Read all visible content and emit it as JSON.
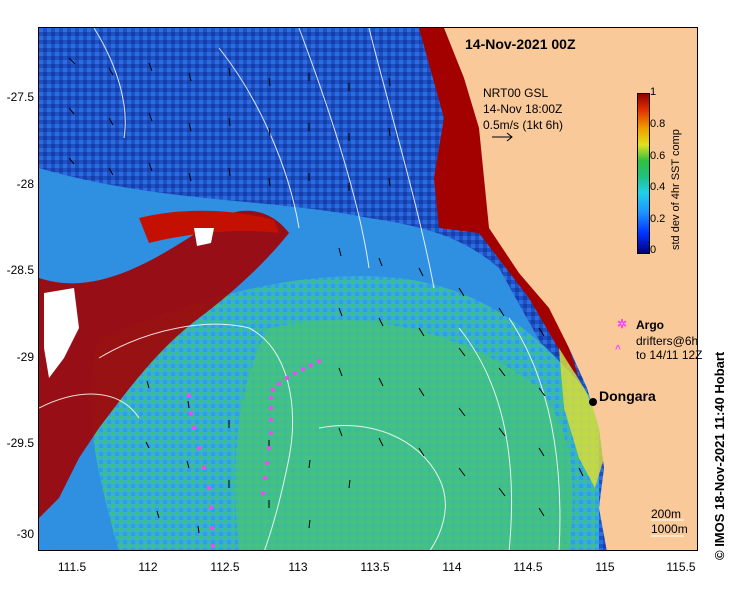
{
  "map": {
    "date_title": "14-Nov-2021 00Z",
    "model_label": "NRT00 GSL",
    "model_time": "14-Nov 18:00Z",
    "velocity_scale": "0.5m/s (1kt 6h)",
    "location_name": "Dongara",
    "isobath_label_1": "200m",
    "isobath_label_2": "1000m",
    "credit": "© IMOS 18-Nov-2021 11:40 Hobart"
  },
  "legend": {
    "argo_label": "Argo",
    "drifters_line1": "drifters@6h",
    "drifters_line2": "to 14/11 12Z"
  },
  "colorbar": {
    "title": "std dev of 4hr SST comp",
    "ticks": [
      "1",
      "0.8",
      "0.6",
      "0.4",
      "0.2",
      "0"
    ]
  },
  "axes": {
    "lat_labels": [
      "-27.5",
      "-28",
      "-28.5",
      "-29",
      "-29.5",
      "-30"
    ],
    "lon_labels": [
      "111.5",
      "112",
      "112.5",
      "113",
      "113.5",
      "114",
      "114.5",
      "115",
      "115.5"
    ]
  },
  "colors": {
    "land": "#fac99a",
    "deep_blue": "#1a3fb8",
    "mid_blue": "#2a7fe0",
    "green": "#40c070",
    "red": "#a00000"
  }
}
